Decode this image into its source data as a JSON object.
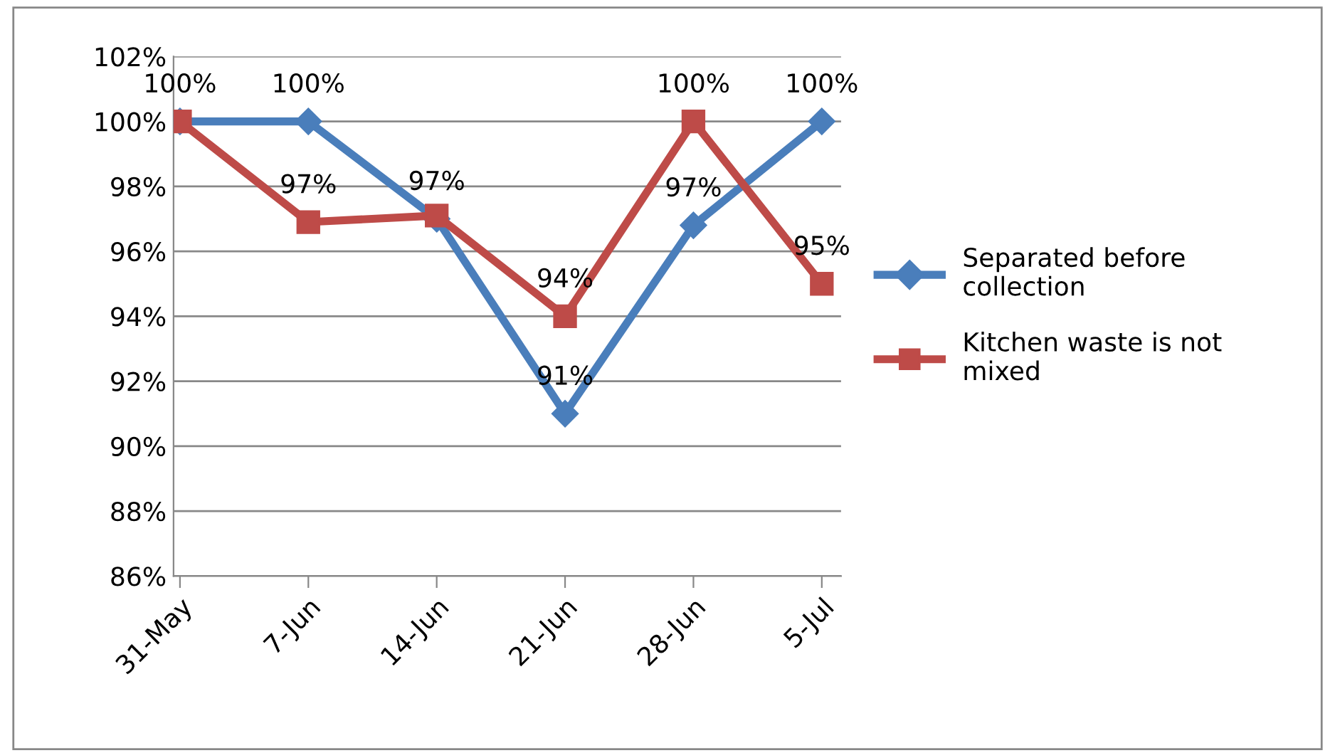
{
  "chart_data": {
    "type": "line",
    "categories": [
      "31-May",
      "7-Jun",
      "14-Jun",
      "21-Jun",
      "28-Jun",
      "5-Jul"
    ],
    "series": [
      {
        "name": "Separated before collection",
        "color": "#4a7ebb",
        "marker": "diamond",
        "values": [
          100,
          100,
          97.0,
          91,
          96.8,
          100
        ],
        "value_labels": [
          "100%",
          "100%",
          "97%",
          "91%",
          "97%",
          "100%"
        ]
      },
      {
        "name": "Kitchen waste is not mixed",
        "color": "#be4b48",
        "marker": "square",
        "values": [
          100,
          96.9,
          97.1,
          94,
          100,
          95
        ],
        "value_labels": [
          null,
          "97%",
          null,
          "94%",
          "100%",
          "95%"
        ]
      }
    ],
    "ylim": [
      86,
      102
    ],
    "yticks": [
      {
        "value": 86,
        "label": "86%"
      },
      {
        "value": 88,
        "label": "88%"
      },
      {
        "value": 90,
        "label": "90%"
      },
      {
        "value": 92,
        "label": "92%"
      },
      {
        "value": 94,
        "label": "94%"
      },
      {
        "value": 96,
        "label": "96%"
      },
      {
        "value": 98,
        "label": "98%"
      },
      {
        "value": 100,
        "label": "100%"
      },
      {
        "value": 102,
        "label": "102%"
      }
    ],
    "grid": "y",
    "legend": "right",
    "line_style": "solid"
  }
}
